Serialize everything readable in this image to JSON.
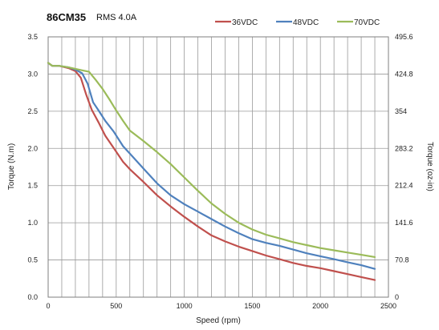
{
  "chart_data": {
    "type": "line",
    "title": "86CM35",
    "subtitle": "RMS 4.0A",
    "xlabel": "Speed (rpm)",
    "ylabel": "Torque (N.m)",
    "y2label": "Torque (oz-in)",
    "xlim": [
      0,
      2500
    ],
    "ylim": [
      0,
      3.5
    ],
    "y2lim": [
      0,
      495.6
    ],
    "xticks": [
      "0",
      "500",
      "1000",
      "1500",
      "2000",
      "2500"
    ],
    "yticks": [
      "0.0",
      "0.5",
      "1.0",
      "1.5",
      "2.0",
      "2.5",
      "3.0",
      "3.5"
    ],
    "y2ticks": [
      "0",
      "70.8",
      "141.6",
      "212.4",
      "283.2",
      "354",
      "424.8",
      "495.6"
    ],
    "grid": "vertical and horizontal, every 100 rpm and every 0.5 N.m",
    "legend_position": "top-right",
    "series": [
      {
        "name": "36VDC",
        "color": "#C0504D",
        "x": [
          0,
          30,
          80,
          150,
          200,
          240,
          280,
          320,
          370,
          420,
          480,
          550,
          600,
          700,
          800,
          900,
          1000,
          1100,
          1200,
          1300,
          1400,
          1500,
          1600,
          1700,
          1800,
          1900,
          2000,
          2100,
          2200,
          2300,
          2400
        ],
        "y": [
          3.15,
          3.11,
          3.11,
          3.08,
          3.04,
          2.95,
          2.72,
          2.52,
          2.35,
          2.17,
          2.01,
          1.82,
          1.72,
          1.55,
          1.37,
          1.22,
          1.08,
          0.95,
          0.83,
          0.75,
          0.68,
          0.62,
          0.56,
          0.51,
          0.46,
          0.42,
          0.39,
          0.35,
          0.31,
          0.27,
          0.23
        ]
      },
      {
        "name": "48VDC",
        "color": "#4F81BD",
        "x": [
          0,
          30,
          80,
          150,
          200,
          250,
          290,
          330,
          370,
          420,
          480,
          550,
          600,
          700,
          800,
          900,
          1000,
          1100,
          1200,
          1300,
          1400,
          1500,
          1600,
          1700,
          1800,
          1900,
          2000,
          2100,
          2200,
          2300,
          2400
        ],
        "y": [
          3.15,
          3.11,
          3.11,
          3.09,
          3.06,
          3.01,
          2.87,
          2.62,
          2.51,
          2.37,
          2.23,
          2.03,
          1.93,
          1.73,
          1.53,
          1.37,
          1.25,
          1.15,
          1.05,
          0.95,
          0.86,
          0.78,
          0.73,
          0.69,
          0.64,
          0.59,
          0.55,
          0.51,
          0.47,
          0.43,
          0.38
        ]
      },
      {
        "name": "70VDC",
        "color": "#9BBB59",
        "x": [
          0,
          30,
          80,
          150,
          200,
          250,
          300,
          350,
          400,
          450,
          500,
          550,
          600,
          700,
          800,
          900,
          1000,
          1100,
          1200,
          1300,
          1400,
          1500,
          1600,
          1700,
          1800,
          1900,
          2000,
          2100,
          2200,
          2300,
          2400
        ],
        "y": [
          3.15,
          3.11,
          3.11,
          3.09,
          3.07,
          3.05,
          3.03,
          2.92,
          2.8,
          2.66,
          2.51,
          2.37,
          2.24,
          2.1,
          1.95,
          1.79,
          1.61,
          1.43,
          1.26,
          1.12,
          1.0,
          0.91,
          0.84,
          0.79,
          0.74,
          0.7,
          0.66,
          0.63,
          0.6,
          0.57,
          0.54
        ]
      }
    ]
  }
}
